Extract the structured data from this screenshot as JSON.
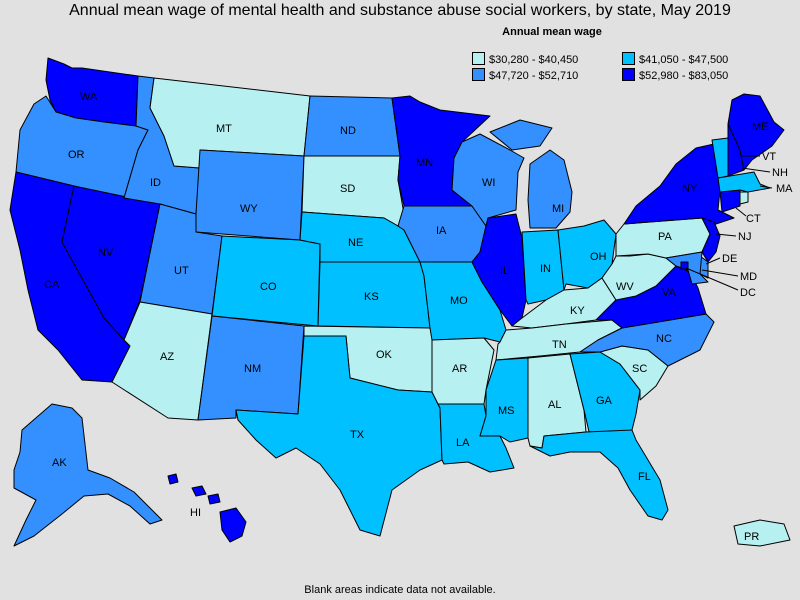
{
  "title": "Annual mean wage of mental health and substance abuse social workers, by state, May 2019",
  "legend": {
    "title": "Annual mean wage",
    "ranges": [
      {
        "id": "r1",
        "label": "$30,280 - $40,450",
        "color": "#b6f0f0"
      },
      {
        "id": "r2",
        "label": "$41,050 - $47,500",
        "color": "#00c0ff"
      },
      {
        "id": "r3",
        "label": "$47,720 - $52,710",
        "color": "#3590ff"
      },
      {
        "id": "r4",
        "label": "$52,980 - $83,050",
        "color": "#0000ff"
      }
    ]
  },
  "footnote": "Blank areas indicate data not available.",
  "states": [
    {
      "abbr": "WA",
      "range": "r4"
    },
    {
      "abbr": "OR",
      "range": "r3"
    },
    {
      "abbr": "CA",
      "range": "r4"
    },
    {
      "abbr": "NV",
      "range": "r4"
    },
    {
      "abbr": "ID",
      "range": "r3"
    },
    {
      "abbr": "MT",
      "range": "r1"
    },
    {
      "abbr": "WY",
      "range": "r3"
    },
    {
      "abbr": "UT",
      "range": "r3"
    },
    {
      "abbr": "AZ",
      "range": "r1"
    },
    {
      "abbr": "CO",
      "range": "r2"
    },
    {
      "abbr": "NM",
      "range": "r3"
    },
    {
      "abbr": "ND",
      "range": "r3"
    },
    {
      "abbr": "SD",
      "range": "r1"
    },
    {
      "abbr": "NE",
      "range": "r2"
    },
    {
      "abbr": "KS",
      "range": "r2"
    },
    {
      "abbr": "OK",
      "range": "r1"
    },
    {
      "abbr": "TX",
      "range": "r2"
    },
    {
      "abbr": "MN",
      "range": "r4"
    },
    {
      "abbr": "IA",
      "range": "r3"
    },
    {
      "abbr": "MO",
      "range": "r2"
    },
    {
      "abbr": "AR",
      "range": "r1"
    },
    {
      "abbr": "LA",
      "range": "r2"
    },
    {
      "abbr": "WI",
      "range": "r3"
    },
    {
      "abbr": "IL",
      "range": "r4"
    },
    {
      "abbr": "MI",
      "range": "r3"
    },
    {
      "abbr": "IN",
      "range": "r2"
    },
    {
      "abbr": "OH",
      "range": "r2"
    },
    {
      "abbr": "KY",
      "range": "r1"
    },
    {
      "abbr": "TN",
      "range": "r1"
    },
    {
      "abbr": "MS",
      "range": "r2"
    },
    {
      "abbr": "AL",
      "range": "r1"
    },
    {
      "abbr": "GA",
      "range": "r2"
    },
    {
      "abbr": "FL",
      "range": "r2"
    },
    {
      "abbr": "SC",
      "range": "r1"
    },
    {
      "abbr": "NC",
      "range": "r3"
    },
    {
      "abbr": "VA",
      "range": "r4"
    },
    {
      "abbr": "WV",
      "range": "r1"
    },
    {
      "abbr": "PA",
      "range": "r1"
    },
    {
      "abbr": "NY",
      "range": "r4"
    },
    {
      "abbr": "VT",
      "range": "r2"
    },
    {
      "abbr": "NH",
      "range": "r4"
    },
    {
      "abbr": "ME",
      "range": "r4"
    },
    {
      "abbr": "MA",
      "range": "r2"
    },
    {
      "abbr": "RI",
      "range": "r1"
    },
    {
      "abbr": "CT",
      "range": "r4"
    },
    {
      "abbr": "NJ",
      "range": "r4"
    },
    {
      "abbr": "DE",
      "range": "r3"
    },
    {
      "abbr": "MD",
      "range": "r3"
    },
    {
      "abbr": "DC",
      "range": "r4"
    },
    {
      "abbr": "AK",
      "range": "r3"
    },
    {
      "abbr": "HI",
      "range": "r4"
    },
    {
      "abbr": "PR",
      "range": "r1"
    }
  ]
}
